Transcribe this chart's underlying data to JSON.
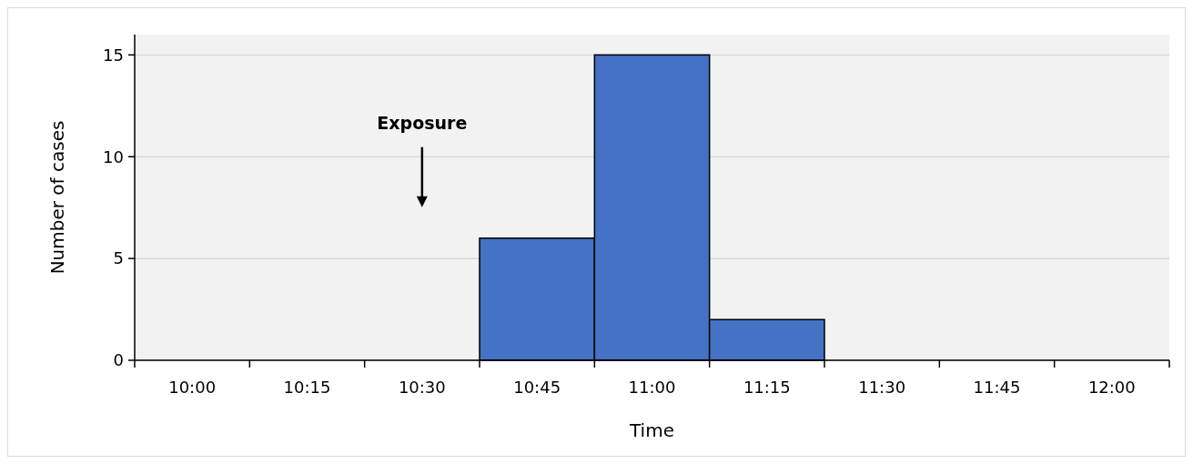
{
  "chart_data": {
    "type": "bar",
    "xlabel": "Time",
    "ylabel": "Number of cases",
    "categories": [
      "10:00",
      "10:15",
      "10:30",
      "10:45",
      "11:00",
      "11:15",
      "11:30",
      "11:45",
      "12:00"
    ],
    "values": [
      0,
      0,
      0,
      6,
      15,
      2,
      0,
      0,
      0
    ],
    "color": "#4472c4",
    "ylim": [
      0,
      16
    ],
    "yticks": [
      0,
      5,
      10,
      15
    ],
    "grid": "y",
    "annotations": [
      "Exposure"
    ]
  }
}
